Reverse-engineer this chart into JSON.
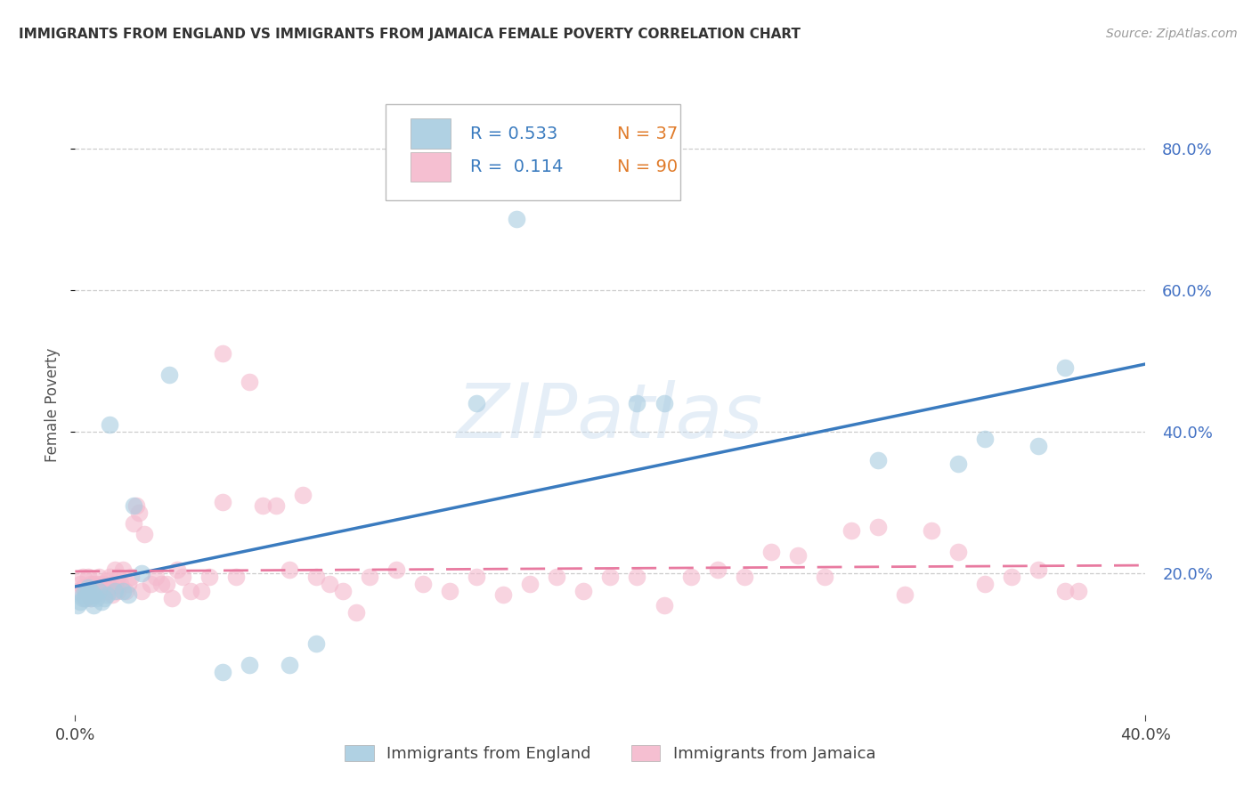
{
  "title": "IMMIGRANTS FROM ENGLAND VS IMMIGRANTS FROM JAMAICA FEMALE POVERTY CORRELATION CHART",
  "source": "Source: ZipAtlas.com",
  "ylabel": "Female Poverty",
  "xlim": [
    0.0,
    0.4
  ],
  "ylim": [
    0.0,
    0.875
  ],
  "yticks": [
    0.2,
    0.4,
    0.6,
    0.8
  ],
  "xticks": [
    0.0,
    0.4
  ],
  "england_R": 0.533,
  "england_N": 37,
  "jamaica_R": 0.114,
  "jamaica_N": 90,
  "england_color": "#a8cce0",
  "jamaica_color": "#f4b8cc",
  "england_line_color": "#3a7bbf",
  "jamaica_line_color": "#e87aa0",
  "background_color": "#ffffff",
  "england_x": [
    0.001,
    0.002,
    0.003,
    0.003,
    0.004,
    0.004,
    0.005,
    0.005,
    0.006,
    0.006,
    0.007,
    0.007,
    0.008,
    0.009,
    0.01,
    0.011,
    0.012,
    0.013,
    0.015,
    0.018,
    0.02,
    0.022,
    0.025,
    0.035,
    0.055,
    0.065,
    0.08,
    0.09,
    0.15,
    0.165,
    0.22,
    0.3,
    0.33,
    0.34,
    0.36,
    0.37,
    0.21
  ],
  "england_y": [
    0.155,
    0.16,
    0.17,
    0.165,
    0.175,
    0.165,
    0.18,
    0.17,
    0.165,
    0.175,
    0.155,
    0.17,
    0.165,
    0.175,
    0.16,
    0.165,
    0.17,
    0.41,
    0.175,
    0.175,
    0.17,
    0.295,
    0.2,
    0.48,
    0.06,
    0.07,
    0.07,
    0.1,
    0.44,
    0.7,
    0.44,
    0.36,
    0.355,
    0.39,
    0.38,
    0.49,
    0.44
  ],
  "jamaica_x": [
    0.001,
    0.002,
    0.003,
    0.003,
    0.004,
    0.004,
    0.005,
    0.005,
    0.006,
    0.006,
    0.007,
    0.007,
    0.008,
    0.008,
    0.009,
    0.009,
    0.01,
    0.01,
    0.011,
    0.011,
    0.012,
    0.012,
    0.013,
    0.013,
    0.014,
    0.014,
    0.015,
    0.015,
    0.016,
    0.016,
    0.017,
    0.018,
    0.019,
    0.02,
    0.021,
    0.022,
    0.023,
    0.024,
    0.025,
    0.026,
    0.028,
    0.03,
    0.032,
    0.034,
    0.036,
    0.038,
    0.04,
    0.043,
    0.047,
    0.05,
    0.055,
    0.06,
    0.065,
    0.07,
    0.08,
    0.09,
    0.1,
    0.11,
    0.12,
    0.13,
    0.14,
    0.15,
    0.16,
    0.17,
    0.18,
    0.19,
    0.2,
    0.21,
    0.22,
    0.23,
    0.24,
    0.25,
    0.26,
    0.27,
    0.28,
    0.29,
    0.3,
    0.31,
    0.32,
    0.33,
    0.34,
    0.35,
    0.36,
    0.37,
    0.375,
    0.055,
    0.075,
    0.085,
    0.095,
    0.105
  ],
  "jamaica_y": [
    0.175,
    0.185,
    0.18,
    0.195,
    0.175,
    0.165,
    0.195,
    0.175,
    0.165,
    0.185,
    0.185,
    0.17,
    0.185,
    0.175,
    0.195,
    0.175,
    0.185,
    0.175,
    0.185,
    0.175,
    0.19,
    0.175,
    0.195,
    0.175,
    0.17,
    0.18,
    0.205,
    0.185,
    0.175,
    0.195,
    0.185,
    0.205,
    0.175,
    0.185,
    0.195,
    0.27,
    0.295,
    0.285,
    0.175,
    0.255,
    0.185,
    0.195,
    0.185,
    0.185,
    0.165,
    0.205,
    0.195,
    0.175,
    0.175,
    0.195,
    0.51,
    0.195,
    0.47,
    0.295,
    0.205,
    0.195,
    0.175,
    0.195,
    0.205,
    0.185,
    0.175,
    0.195,
    0.17,
    0.185,
    0.195,
    0.175,
    0.195,
    0.195,
    0.155,
    0.195,
    0.205,
    0.195,
    0.23,
    0.225,
    0.195,
    0.26,
    0.265,
    0.17,
    0.26,
    0.23,
    0.185,
    0.195,
    0.205,
    0.175,
    0.175,
    0.3,
    0.295,
    0.31,
    0.185,
    0.145
  ]
}
